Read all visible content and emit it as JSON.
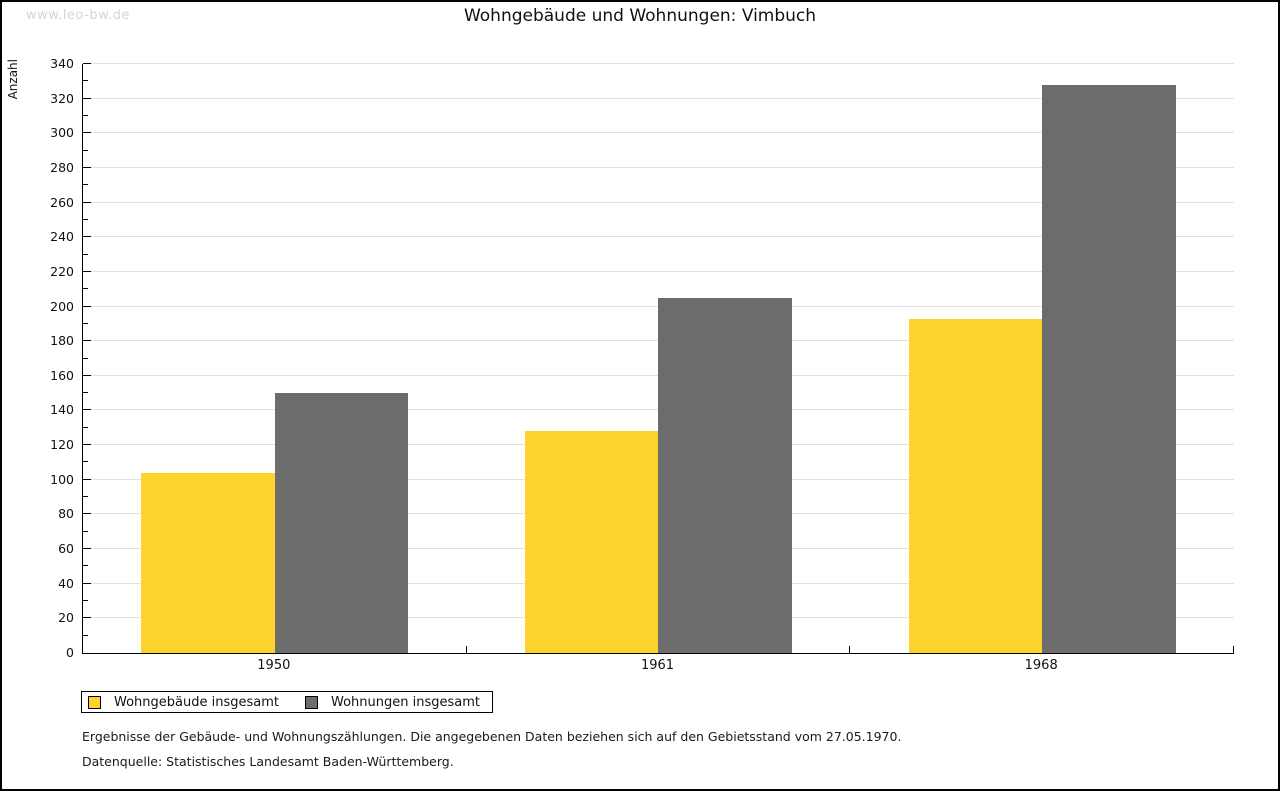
{
  "watermark": "www.leo-bw.de",
  "title": "Wohngebäude und Wohnungen: Vimbuch",
  "chart_data": {
    "type": "bar",
    "title": "Wohngebäude und Wohnungen: Vimbuch",
    "categories": [
      "1950",
      "1961",
      "1968"
    ],
    "series": [
      {
        "name": "Wohngebäude insgesamt",
        "color": "#FCD32D",
        "values": [
          104,
          128,
          193
        ]
      },
      {
        "name": "Wohnungen insgesamt",
        "color": "#6C6C6C",
        "values": [
          150,
          205,
          328
        ]
      }
    ],
    "xlabel": "",
    "ylabel": "Anzahl",
    "ylim": [
      0,
      340
    ],
    "y_major_step": 20,
    "y_minor_step": 10,
    "grid": "horizontal",
    "legend_position": "bottom-left"
  },
  "footer": {
    "line1": "Ergebnisse der Gebäude- und Wohnungszählungen. Die angegebenen Daten beziehen sich auf den Gebietsstand vom 27.05.1970.",
    "line2": "Datenquelle: Statistisches Landesamt Baden-Württemberg."
  },
  "colors": {
    "grid": "#E1E1E1",
    "axis": "#000000",
    "watermark": "#D5D5D5",
    "background": "#FFFFFF",
    "border": "#000000"
  }
}
